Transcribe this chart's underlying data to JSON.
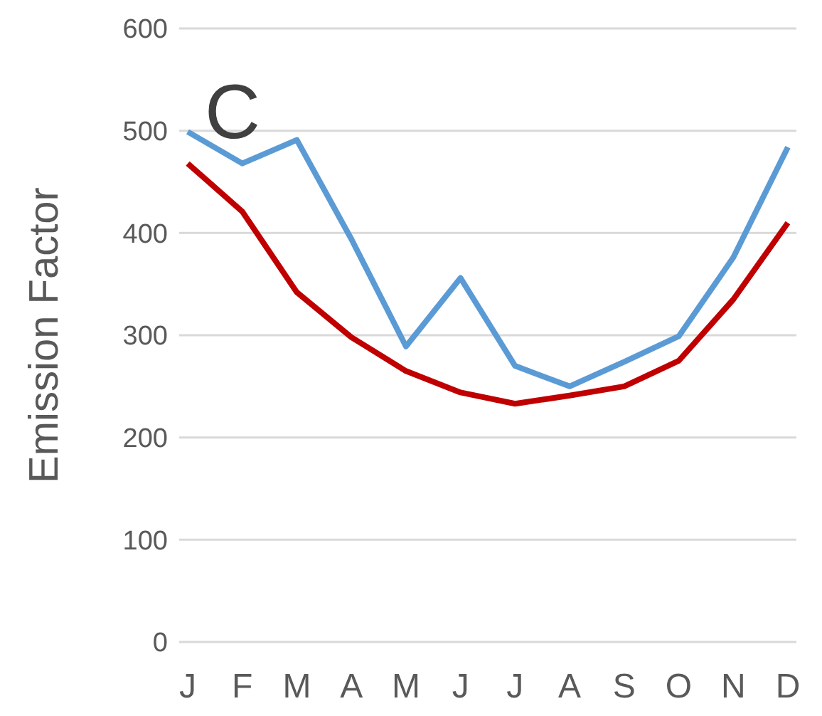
{
  "chart_data": {
    "type": "line",
    "ylabel": "Emission Factor",
    "annotations": [
      "C"
    ],
    "categories": [
      "J",
      "F",
      "M",
      "A",
      "M",
      "J",
      "J",
      "A",
      "S",
      "O",
      "N",
      "D"
    ],
    "series": [
      {
        "color": "#5b9bd5",
        "values": [
          499,
          468,
          491,
          394,
          289,
          356,
          270,
          250,
          274,
          299,
          376,
          484
        ]
      },
      {
        "color": "#c00000",
        "values": [
          468,
          421,
          342,
          298,
          265,
          244,
          233,
          241,
          250,
          275,
          335,
          410
        ]
      }
    ],
    "ylim": [
      0,
      600
    ],
    "yticks": [
      0,
      100,
      200,
      300,
      400,
      500,
      600
    ],
    "grid": "y",
    "marker": "none",
    "line_style": "solid"
  }
}
